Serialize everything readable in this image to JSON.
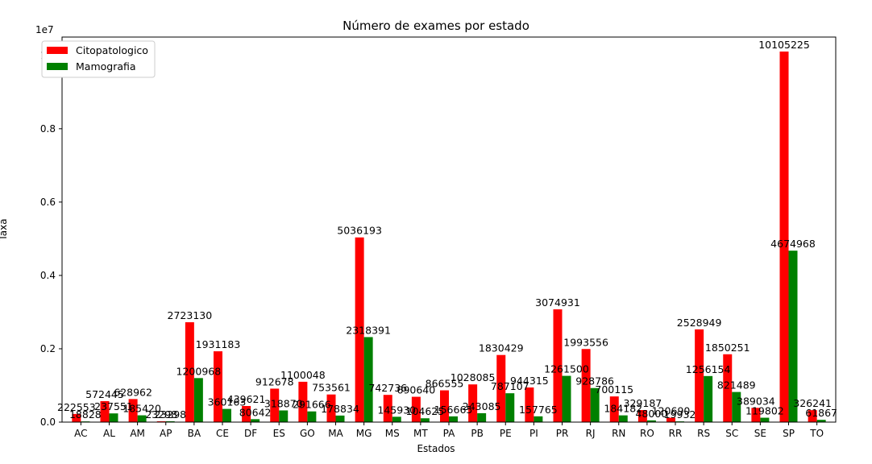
{
  "chart_data": {
    "type": "bar",
    "title": "Número de exames por estado",
    "xlabel": "Estados",
    "ylabel": "Taxa",
    "y_scale_label": "1e7",
    "y_tick_labels": [
      "0.0",
      "0.2",
      "0.4",
      "0.6",
      "0.8",
      "1.0"
    ],
    "y_tick_values": [
      0,
      2000000,
      4000000,
      6000000,
      8000000,
      10000000
    ],
    "ylim": [
      0,
      10500000
    ],
    "grid": false,
    "legend_position": "top-left",
    "categories": [
      "AC",
      "AL",
      "AM",
      "AP",
      "BA",
      "CE",
      "DF",
      "ES",
      "GO",
      "MA",
      "MG",
      "MS",
      "MT",
      "PA",
      "PB",
      "PE",
      "PI",
      "PR",
      "RJ",
      "RN",
      "RO",
      "RR",
      "RS",
      "SC",
      "SE",
      "SP",
      "TO"
    ],
    "series": [
      {
        "name": "Citopatologico",
        "color": "#ff0000",
        "values": [
          222553,
          572445,
          628962,
          23298,
          2723130,
          1931183,
          439621,
          912678,
          1100048,
          753561,
          5036193,
          742736,
          690640,
          866555,
          1028085,
          1830429,
          944315,
          3074931,
          1993556,
          700115,
          329187,
          120690,
          2528949,
          1850251,
          389034,
          10105225,
          326241
        ]
      },
      {
        "name": "Mamografia",
        "color": "#008000",
        "values": [
          18828,
          237551,
          185420,
          23298,
          1200968,
          360163,
          80642,
          318870,
          291666,
          178834,
          2318391,
          145930,
          104625,
          156665,
          243085,
          787107,
          157765,
          1261500,
          928786,
          184182,
          48000,
          19932,
          1256154,
          821489,
          119802,
          4674968,
          61867
        ]
      }
    ]
  }
}
